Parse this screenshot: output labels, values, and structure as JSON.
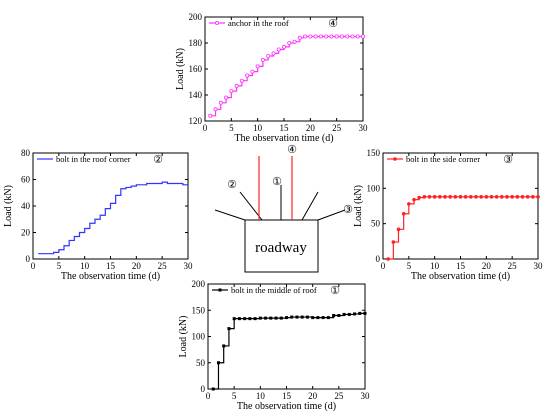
{
  "chart_data": [
    {
      "id": "c4",
      "type": "line",
      "xlabel": "The observation time (d)",
      "ylabel": "Load (kN)",
      "xlim": [
        0,
        30
      ],
      "ylim": [
        120,
        200
      ],
      "xticks": [
        0,
        5,
        10,
        15,
        20,
        25,
        30
      ],
      "yticks": [
        120,
        140,
        160,
        180,
        200
      ],
      "legend_position": "top-left",
      "tag": "④",
      "series": [
        {
          "name": "anchor in the roof",
          "color": "#ff33ff",
          "marker": "circle-open",
          "step": true,
          "x": [
            1,
            2,
            3,
            4,
            5,
            6,
            7,
            8,
            9,
            10,
            11,
            12,
            13,
            14,
            15,
            16,
            17,
            18,
            19,
            20,
            21,
            22,
            23,
            24,
            25,
            26,
            27,
            28,
            29,
            30
          ],
          "y": [
            124,
            129,
            134,
            138,
            143,
            147,
            151,
            155,
            158,
            162,
            167,
            170,
            172,
            175,
            177,
            180,
            181,
            184,
            185,
            185,
            185,
            185,
            185,
            185,
            185,
            185,
            185,
            185,
            185,
            185
          ]
        }
      ]
    },
    {
      "id": "c2",
      "type": "line",
      "xlabel": "The observation time (d)",
      "ylabel": "Load (kN)",
      "xlim": [
        0,
        30
      ],
      "ylim": [
        0,
        80
      ],
      "xticks": [
        0,
        5,
        10,
        15,
        20,
        25,
        30
      ],
      "yticks": [
        0,
        20,
        40,
        60,
        80
      ],
      "legend_position": "top-left",
      "tag": "②",
      "series": [
        {
          "name": "bolt in the roof corner",
          "color": "#3333ff",
          "marker": "none",
          "step": true,
          "x": [
            1,
            2,
            3,
            4,
            5,
            6,
            7,
            8,
            9,
            10,
            11,
            12,
            13,
            14,
            15,
            16,
            17,
            18,
            19,
            20,
            21,
            22,
            23,
            24,
            25,
            26,
            27,
            28,
            29,
            30
          ],
          "y": [
            4,
            4,
            4,
            5,
            7,
            10,
            14,
            17,
            20,
            23,
            27,
            30,
            33,
            38,
            42,
            48,
            53,
            54,
            55,
            56,
            56,
            57,
            57,
            57,
            58,
            57,
            57,
            57,
            56,
            56
          ]
        }
      ]
    },
    {
      "id": "c3",
      "type": "line",
      "xlabel": "The observation time (d)",
      "ylabel": "Load (kN)",
      "xlim": [
        0,
        30
      ],
      "ylim": [
        0,
        150
      ],
      "xticks": [
        0,
        5,
        10,
        15,
        20,
        25,
        30
      ],
      "yticks": [
        0,
        50,
        100,
        150
      ],
      "legend_position": "top-left",
      "tag": "③",
      "series": [
        {
          "name": "bolt in the side corner",
          "color": "#ff2222",
          "marker": "circle-filled",
          "step": true,
          "x": [
            1,
            2,
            3,
            4,
            5,
            6,
            7,
            8,
            9,
            10,
            11,
            12,
            13,
            14,
            15,
            16,
            17,
            18,
            19,
            20,
            21,
            22,
            23,
            24,
            25,
            26,
            27,
            28,
            29,
            30
          ],
          "y": [
            0,
            24,
            42,
            64,
            78,
            84,
            87,
            88,
            88,
            88,
            88,
            88,
            88,
            88,
            88,
            88,
            88,
            88,
            88,
            88,
            88,
            88,
            88,
            88,
            88,
            88,
            88,
            88,
            88,
            88
          ]
        }
      ]
    },
    {
      "id": "c1",
      "type": "line",
      "xlabel": "The observation time (d)",
      "ylabel": "Load (kN)",
      "xlim": [
        0,
        30
      ],
      "ylim": [
        0,
        200
      ],
      "xticks": [
        0,
        5,
        10,
        15,
        20,
        25,
        30
      ],
      "yticks": [
        0,
        50,
        100,
        150,
        200
      ],
      "legend_position": "top-left",
      "tag": "①",
      "series": [
        {
          "name": "bolt in the middle of roof",
          "color": "#000000",
          "marker": "square-filled",
          "step": true,
          "x": [
            1,
            2,
            3,
            4,
            5,
            6,
            7,
            8,
            9,
            10,
            11,
            12,
            13,
            14,
            15,
            16,
            17,
            18,
            19,
            20,
            21,
            22,
            23,
            24,
            25,
            26,
            27,
            28,
            29,
            30
          ],
          "y": [
            0,
            50,
            82,
            115,
            134,
            134,
            134,
            134,
            134,
            135,
            135,
            135,
            135,
            135,
            136,
            137,
            137,
            137,
            137,
            136,
            136,
            136,
            136,
            140,
            140,
            142,
            142,
            143,
            144,
            144
          ]
        }
      ]
    }
  ],
  "schematic": {
    "box_label": "roadway",
    "labels": [
      "②",
      "①",
      "④",
      "③"
    ]
  }
}
